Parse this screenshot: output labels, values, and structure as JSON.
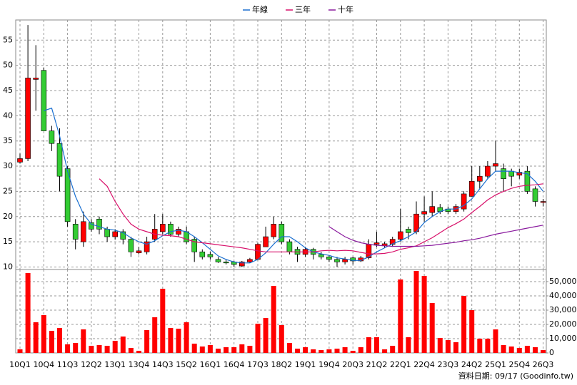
{
  "chart_data": {
    "type": "candlestick",
    "categories": [
      "10Q1",
      null,
      null,
      "10Q4",
      null,
      null,
      "11Q3",
      null,
      null,
      "12Q2",
      null,
      null,
      "13Q1",
      null,
      null,
      "13Q4",
      null,
      null,
      "14Q3",
      null,
      null,
      "15Q2",
      null,
      null,
      "16Q1",
      null,
      null,
      "16Q4",
      null,
      null,
      "17Q3",
      null,
      null,
      "18Q2",
      null,
      null,
      "19Q1",
      null,
      null,
      "19Q4",
      null,
      null,
      "20Q3",
      null,
      null,
      "21Q2",
      null,
      null,
      "22Q1",
      null,
      null,
      "22Q4",
      null,
      null,
      "23Q3",
      null,
      null,
      "24Q2",
      null,
      null,
      "25Q1",
      null,
      null,
      "25Q4",
      null,
      null,
      "26Q3"
    ],
    "open": [
      30.8,
      31.5,
      47.2,
      49,
      37,
      34.5,
      29.5,
      18.5,
      15,
      18.8,
      19.5,
      17.5,
      16,
      17,
      15.5,
      12.8,
      13,
      15.5,
      17,
      18.5,
      16.5,
      17,
      15.5,
      13,
      12.5,
      11.5,
      11,
      11,
      10.2,
      11,
      11.5,
      14,
      16,
      18.5,
      15,
      13.5,
      12.5,
      13.5,
      12.5,
      12,
      11.5,
      11,
      11.8,
      11.2,
      11.8,
      14.5,
      14.2,
      14.5,
      15.5,
      17.5,
      17,
      20.5,
      20.8,
      21.8,
      21.5,
      21,
      21.5,
      24,
      27,
      28,
      30,
      29.5,
      29,
      28.2,
      29,
      25.5,
      22.8
    ],
    "high": [
      32.5,
      58,
      54,
      49.5,
      38,
      37.5,
      30,
      19.5,
      21,
      19.5,
      20,
      18,
      17.5,
      17.5,
      16,
      14,
      16,
      20.5,
      20.5,
      19,
      18,
      18,
      16,
      13.5,
      13,
      12,
      11.5,
      11.2,
      11.2,
      11.8,
      14.8,
      18,
      20,
      19,
      15.5,
      14,
      14,
      13.8,
      13,
      12.3,
      12,
      12,
      12,
      12.2,
      15.5,
      17,
      15,
      16,
      21.5,
      18,
      23,
      24,
      25,
      22.5,
      22,
      22.5,
      25,
      30,
      30,
      31,
      35,
      30.5,
      29.5,
      29.5,
      30,
      26,
      23.5
    ],
    "low": [
      30.5,
      31,
      41,
      37,
      33,
      25,
      18,
      13.5,
      14,
      17,
      16.5,
      15,
      15.5,
      14.5,
      12,
      12.5,
      12.5,
      15,
      16.5,
      16,
      16,
      14.5,
      11,
      11.5,
      11.5,
      10.8,
      10.5,
      10,
      10,
      10.8,
      11.3,
      14,
      15.5,
      14.5,
      12.5,
      11,
      12,
      11.5,
      11.5,
      11,
      10,
      10.5,
      10.5,
      11,
      11.5,
      14,
      13.8,
      14,
      15,
      15.5,
      16.5,
      19,
      20,
      20.5,
      20.5,
      20.5,
      21,
      24,
      25.5,
      27.5,
      29,
      25,
      26,
      27.5,
      24.5,
      22,
      22
    ],
    "close": [
      31.5,
      47.5,
      47.5,
      37,
      34.5,
      28,
      19,
      15.5,
      19,
      17.5,
      17.5,
      16,
      17,
      15.5,
      13,
      13.2,
      15,
      17.5,
      18.5,
      16.5,
      17.5,
      15,
      13,
      12,
      12,
      11,
      10.8,
      10.5,
      11,
      11.5,
      14.5,
      16,
      18.5,
      15,
      13,
      12.5,
      13.5,
      12.5,
      12,
      11.5,
      11,
      11.5,
      11.2,
      11.8,
      14.5,
      14.8,
      14.6,
      15.5,
      17,
      16.8,
      20.5,
      21,
      22,
      21,
      21,
      22,
      24.5,
      27,
      28,
      30,
      30.5,
      27.5,
      28,
      28.8,
      25,
      23,
      23
    ],
    "up_color": "#ff0000",
    "down_color": "#33cc33",
    "volume": {
      "color": "#ff0000",
      "axis": "y2",
      "values": [
        2500,
        56000,
        21500,
        26500,
        15500,
        17500,
        6000,
        7000,
        16500,
        5000,
        5500,
        5000,
        8500,
        11500,
        3500,
        1500,
        16000,
        25000,
        45000,
        17500,
        17000,
        21500,
        6500,
        4500,
        5500,
        3000,
        4000,
        4000,
        6000,
        5000,
        20500,
        24500,
        47000,
        19500,
        7000,
        3000,
        4000,
        2500,
        2000,
        2500,
        3000,
        4000,
        1500,
        4000,
        11000,
        11000,
        2500,
        5000,
        51500,
        11000,
        57500,
        54000,
        35000,
        10500,
        9000,
        7500,
        40000,
        30000,
        10000,
        10000,
        16500,
        5500,
        4500,
        3500,
        5000,
        4000,
        2000
      ]
    },
    "series": [
      {
        "name": "年線",
        "color": "#1a6fd0",
        "values": [
          null,
          null,
          null,
          41,
          41.5,
          36,
          29,
          24,
          20.5,
          18.5,
          18,
          17.5,
          17.3,
          16.8,
          15.8,
          15,
          14.5,
          15.2,
          16.2,
          17,
          17.3,
          17,
          16,
          14.8,
          13.5,
          12.2,
          11.5,
          11,
          10.8,
          10.8,
          11.5,
          12.8,
          14.5,
          16,
          16,
          15,
          13.8,
          13,
          12.6,
          12.3,
          11.8,
          11.6,
          11.3,
          11.3,
          12,
          13,
          13.8,
          14.6,
          15.2,
          16,
          17,
          18.8,
          20,
          21,
          21.5,
          21.5,
          22.2,
          23.5,
          25.5,
          27.5,
          29,
          29,
          29,
          28.7,
          28.5,
          27,
          25
        ]
      },
      {
        "name": "三年",
        "color": "#d8106a",
        "values": [
          null,
          null,
          null,
          null,
          null,
          null,
          null,
          null,
          null,
          null,
          27.5,
          26,
          23,
          20.5,
          18.5,
          17.5,
          17,
          16.5,
          16.3,
          16.2,
          16,
          15.5,
          15,
          14.8,
          14.6,
          14.4,
          14.2,
          14,
          13.8,
          13.5,
          13.2,
          13,
          13,
          13,
          13,
          13,
          13,
          13,
          13.2,
          13.3,
          13.2,
          13.3,
          13.2,
          12.9,
          12.6,
          12.6,
          12.7,
          13,
          13.5,
          13.8,
          14.2,
          15,
          15.8,
          16.8,
          17.8,
          18.6,
          19.5,
          20.8,
          22,
          23.3,
          24.3,
          25,
          25.6,
          26,
          26.2,
          26.3,
          26.5
        ]
      },
      {
        "name": "十年",
        "color": "#8a1a9e",
        "values": [
          null,
          null,
          null,
          null,
          null,
          null,
          null,
          null,
          null,
          null,
          null,
          null,
          null,
          null,
          null,
          null,
          null,
          null,
          null,
          null,
          null,
          null,
          null,
          null,
          null,
          null,
          null,
          null,
          null,
          null,
          null,
          null,
          null,
          null,
          null,
          null,
          null,
          null,
          null,
          18,
          17,
          16,
          15.3,
          14.8,
          14.5,
          14.3,
          14.2,
          14.1,
          14.1,
          14.1,
          14.1,
          14.2,
          14.3,
          14.5,
          14.7,
          14.9,
          15.2,
          15.4,
          15.7,
          16.1,
          16.5,
          16.8,
          17.1,
          17.4,
          17.7,
          18,
          18.3
        ]
      }
    ],
    "ylim": [
      9.5,
      59
    ],
    "yticks": [
      10,
      15,
      20,
      25,
      30,
      35,
      40,
      45,
      50,
      55
    ],
    "y2lim": [
      0,
      58500
    ],
    "y2ticks": [
      0,
      {
        "value": 10000,
        "label": "10,000"
      },
      {
        "value": 20000,
        "label": "20,000"
      },
      {
        "value": 30000,
        "label": "30,000"
      },
      {
        "value": 40000,
        "label": "40,000"
      },
      {
        "value": 50000,
        "label": "50,000"
      }
    ],
    "grid": true,
    "legend": "top",
    "source": "資料日期: 09/17 (Goodinfo.tw)"
  }
}
